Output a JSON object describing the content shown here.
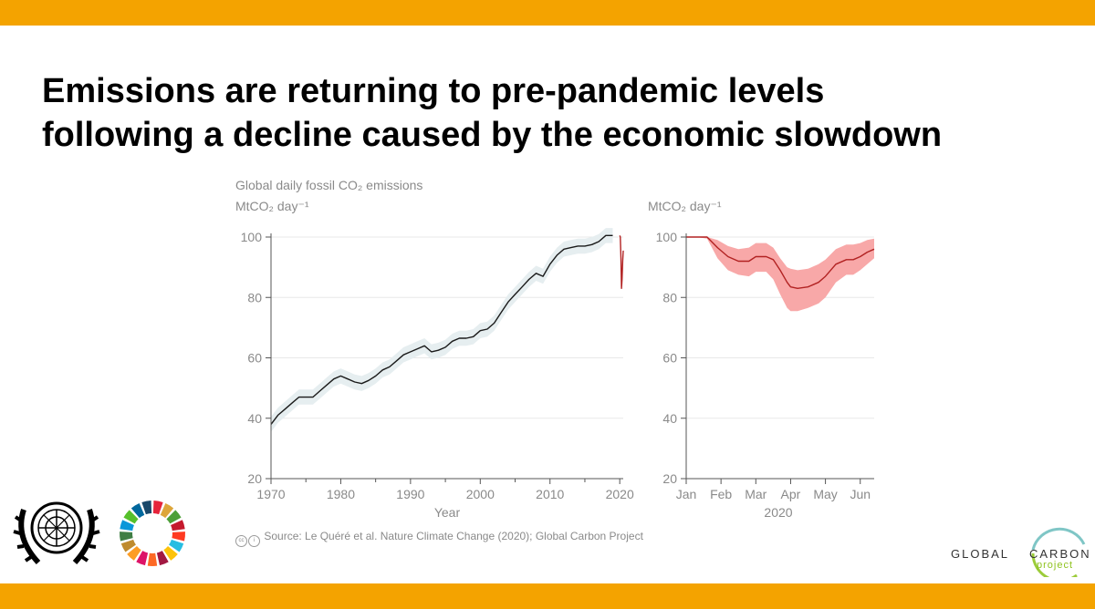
{
  "slide": {
    "title_line1": "Emissions are returning to pre-pandemic levels",
    "title_line2": "following a decline caused by the economic slowdown",
    "source": "Source: Le Quéré et al. Nature Climate Change (2020); Global Carbon Project",
    "source_icon": "cc-by-icon",
    "brand_color": "#f4a300",
    "logo_left_1": "un-emblem-icon",
    "logo_left_2": "sdg-wheel-icon",
    "logo_right": {
      "word1": "GLOBAL",
      "word2": "CARBON",
      "sub": "project"
    }
  },
  "chart_data": [
    {
      "type": "line",
      "title": "Global daily fossil CO₂ emissions",
      "ylabel": "MtCO₂ day⁻¹",
      "xlabel": "Year",
      "xlim": [
        1970,
        2020.5
      ],
      "ylim": [
        20,
        100
      ],
      "xticks": [
        1970,
        1980,
        1990,
        2000,
        2010,
        2020
      ],
      "yticks": [
        20,
        40,
        60,
        80,
        100
      ],
      "grid": true,
      "series": [
        {
          "color": "#1a1a1a",
          "band_color": "#e6eef0",
          "band_width": 2.5,
          "x": [
            1970,
            1971,
            1972,
            1973,
            1974,
            1975,
            1976,
            1977,
            1978,
            1979,
            1980,
            1981,
            1982,
            1983,
            1984,
            1985,
            1986,
            1987,
            1988,
            1989,
            1990,
            1991,
            1992,
            1993,
            1994,
            1995,
            1996,
            1997,
            1998,
            1999,
            2000,
            2001,
            2002,
            2003,
            2004,
            2005,
            2006,
            2007,
            2008,
            2009,
            2010,
            2011,
            2012,
            2013,
            2014,
            2015,
            2016,
            2017,
            2018,
            2019
          ],
          "values": [
            38,
            41,
            43,
            45,
            47,
            47,
            47,
            49,
            51,
            53,
            54,
            53,
            52,
            51.5,
            52.5,
            54,
            56,
            57,
            59,
            61,
            62,
            63,
            64,
            62,
            62.5,
            63.5,
            65.5,
            66.5,
            66.5,
            67,
            69,
            69.5,
            71.5,
            75,
            78.5,
            81,
            83.5,
            86,
            88,
            87,
            91,
            94,
            96,
            96.5,
            97,
            97,
            97.5,
            98.5,
            100.5,
            100.5
          ]
        },
        {
          "color": "#b22222",
          "x": [
            2020.0,
            2020.08,
            2020.17,
            2020.25,
            2020.33,
            2020.42,
            2020.5
          ],
          "values": [
            100.5,
            100,
            93,
            83,
            86,
            92,
            95.5
          ]
        }
      ]
    },
    {
      "type": "line",
      "ylabel": "MtCO₂ day⁻¹",
      "xlabel": "2020",
      "xlim": [
        1,
        6.4
      ],
      "ylim": [
        20,
        100
      ],
      "xticks": [
        1,
        2,
        3,
        4,
        5,
        6
      ],
      "xticklabels": [
        "Jan",
        "Feb",
        "Mar",
        "Apr",
        "May",
        "Jun"
      ],
      "yticks": [
        20,
        40,
        60,
        80,
        100
      ],
      "grid": true,
      "series": [
        {
          "color": "#b22222",
          "band_color": "#f8a8a8",
          "x": [
            1,
            1.3,
            1.6,
            1.9,
            2.2,
            2.5,
            2.8,
            3.0,
            3.3,
            3.5,
            3.7,
            3.9,
            4.0,
            4.2,
            4.5,
            4.8,
            5.0,
            5.3,
            5.6,
            5.8,
            6.0,
            6.2,
            6.4
          ],
          "values": [
            100,
            100,
            100,
            96.5,
            93.5,
            92,
            92,
            93.5,
            93.5,
            92.5,
            89,
            85,
            83.5,
            83,
            83.5,
            85,
            87,
            91,
            92.5,
            92.5,
            93.5,
            95,
            96
          ],
          "lower": [
            100,
            100,
            99.5,
            93,
            89,
            87.5,
            87,
            88.5,
            88.5,
            86,
            81,
            76.5,
            75.5,
            75.5,
            76.5,
            78,
            80,
            85,
            87.5,
            87.5,
            89,
            91,
            93
          ],
          "upper": [
            100,
            100,
            100,
            99,
            97,
            96,
            96.5,
            98,
            98,
            96.5,
            93,
            90,
            89.5,
            89,
            89.5,
            91,
            92.5,
            96,
            97.5,
            97.5,
            98,
            99,
            99.5
          ]
        }
      ]
    }
  ]
}
